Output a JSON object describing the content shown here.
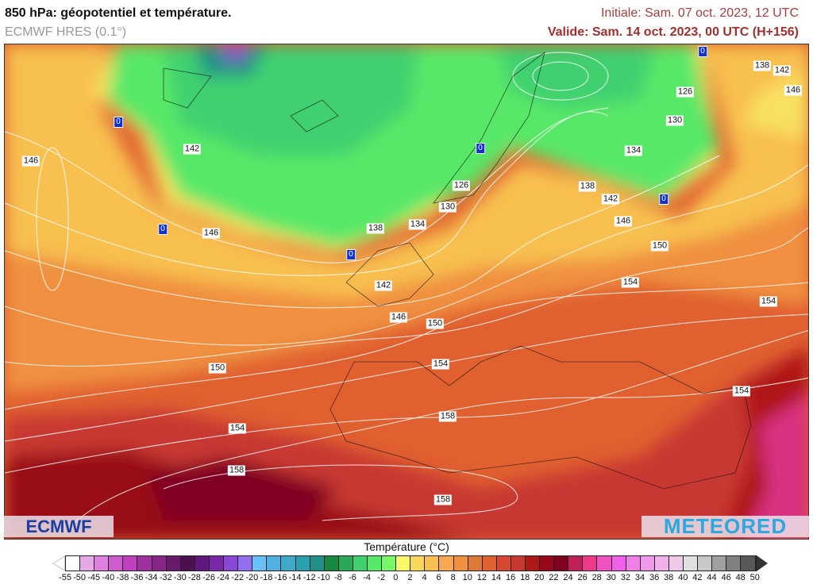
{
  "header": {
    "title": "850 hPa: géopotentiel et température.",
    "model": "ECMWF HRES (0.1°)",
    "initial": "Initiale: Sam. 07 oct. 2023, 12 UTC",
    "valid": "Valide: Sam. 14 oct. 2023, 00 UTC (H+156)"
  },
  "contour_labels": [
    "142",
    "146",
    "146",
    "138",
    "134",
    "130",
    "126",
    "126",
    "130",
    "134",
    "138",
    "142",
    "146",
    "150",
    "154",
    "154",
    "142",
    "146",
    "150",
    "154",
    "150",
    "154",
    "158",
    "158",
    "158",
    "154",
    "138",
    "142",
    "146"
  ],
  "freezing_marker": "0",
  "logos": {
    "left": "ECMWF",
    "right": "METEORED"
  },
  "colorbar": {
    "title": "Température (°C)",
    "labels": [
      "-55",
      "-50",
      "-45",
      "-40",
      "-38",
      "-36",
      "-34",
      "-32",
      "-30",
      "-28",
      "-26",
      "-24",
      "-22",
      "-20",
      "-18",
      "-16",
      "-14",
      "-12",
      "-10",
      "-8",
      "-6",
      "-4",
      "-2",
      "0",
      "2",
      "4",
      "6",
      "8",
      "10",
      "12",
      "14",
      "16",
      "18",
      "20",
      "22",
      "24",
      "26",
      "28",
      "30",
      "32",
      "34",
      "36",
      "38",
      "40",
      "42",
      "44",
      "46",
      "48",
      "50"
    ],
    "colors": [
      "#ffffff",
      "#e6a8e6",
      "#de80de",
      "#d05ad0",
      "#c040c0",
      "#a030a0",
      "#862686",
      "#6a1a6a",
      "#4a1050",
      "#601880",
      "#7828a8",
      "#8a48d8",
      "#9070f0",
      "#68c0f8",
      "#50b0e0",
      "#40a8c8",
      "#28a0b0",
      "#209088",
      "#188840",
      "#28a858",
      "#40d070",
      "#58e868",
      "#78f868",
      "#f8f868",
      "#f8d858",
      "#f8c050",
      "#f8a850",
      "#f09040",
      "#e07838",
      "#e06030",
      "#d84830",
      "#c83830",
      "#b01818",
      "#980818",
      "#800020",
      "#c02058",
      "#f03888",
      "#f050c0",
      "#f060e8",
      "#f080e8",
      "#f098e8",
      "#f0b0e8",
      "#f0c8e8",
      "#e0e0e0",
      "#c8c8c8",
      "#a0a0a0",
      "#808080",
      "#585858"
    ]
  }
}
